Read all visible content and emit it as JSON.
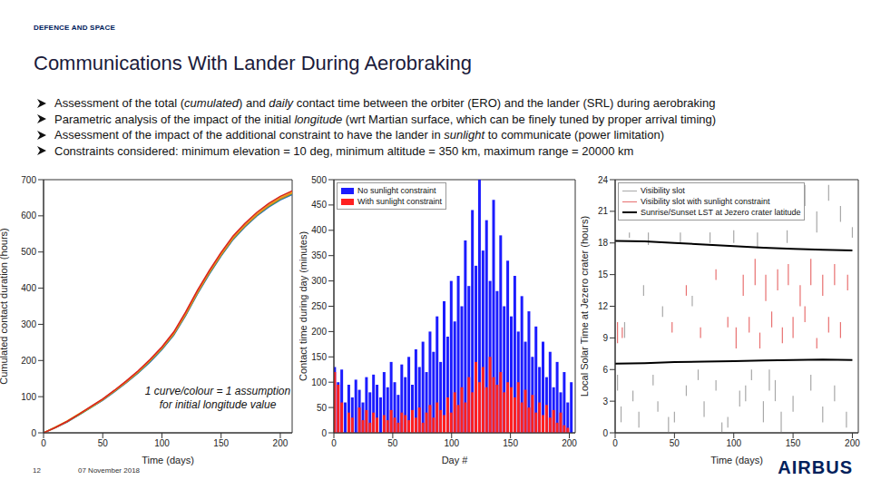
{
  "header": "DEFENCE AND SPACE",
  "title": "Communications With Lander During Aerobraking",
  "bullets": [
    [
      "Assessment of the total (",
      "cumulated",
      ") and ",
      "daily",
      " contact time between the orbiter (ERO) and the lander (SRL) during aerobraking"
    ],
    [
      "Parametric analysis of the impact of the initial ",
      "longitude",
      " (wrt Martian surface, which can be finely tuned by proper arrival timing)"
    ],
    [
      "Assessment of the impact of the additional constraint to have the lander in ",
      "sunlight",
      " to communicate (power limitation)"
    ],
    [
      "Constraints considered: minimum elevation = 10 deg, minimum altitude = 350 km, maximum range = 20000 km"
    ]
  ],
  "chart_data": [
    {
      "type": "line",
      "x_label": "Time (days)",
      "y_label": "Cumulated contact duration (hours)",
      "annotation": [
        "1 curve/colour = 1 assumption",
        "for initial longitude value"
      ],
      "x": [
        0,
        10,
        20,
        30,
        40,
        50,
        60,
        70,
        80,
        90,
        100,
        110,
        120,
        130,
        140,
        150,
        160,
        170,
        180,
        190,
        200,
        210
      ],
      "series": [
        {
          "color": "#3060d0",
          "values": [
            0,
            14,
            30,
            50,
            70,
            90,
            114,
            139,
            166,
            196,
            230,
            270,
            324,
            384,
            439,
            489,
            534,
            569,
            599,
            624,
            644,
            659
          ]
        },
        {
          "color": "#40b040",
          "values": [
            0,
            15,
            31,
            50,
            70,
            91,
            115,
            140,
            167,
            198,
            232,
            272,
            326,
            386,
            441,
            491,
            536,
            571,
            601,
            626,
            646,
            661
          ]
        },
        {
          "color": "#e8d020",
          "values": [
            0,
            16,
            33,
            53,
            72,
            93,
            117,
            143,
            170,
            201,
            236,
            276,
            331,
            391,
            446,
            496,
            541,
            576,
            606,
            631,
            651,
            666
          ]
        },
        {
          "color": "#f08020",
          "values": [
            0,
            14,
            31,
            51,
            71,
            92,
            116,
            141,
            169,
            200,
            234,
            274,
            328,
            388,
            443,
            493,
            538,
            573,
            603,
            628,
            648,
            663
          ]
        },
        {
          "color": "#d62020",
          "values": [
            0,
            15,
            32,
            52,
            73,
            94,
            118,
            144,
            172,
            203,
            238,
            279,
            334,
            394,
            449,
            499,
            544,
            579,
            609,
            634,
            654,
            669
          ]
        }
      ],
      "xlim": [
        0,
        210
      ],
      "xticks": [
        0,
        50,
        100,
        150,
        200
      ],
      "ylim": [
        0,
        700
      ],
      "yticks": [
        0,
        100,
        200,
        300,
        400,
        500,
        600,
        700
      ],
      "grid": false
    },
    {
      "type": "bar",
      "x_label": "Day #",
      "y_label": "Contact time during day (minutes)",
      "x": [
        1,
        4,
        7,
        10,
        13,
        16,
        19,
        22,
        25,
        28,
        31,
        34,
        37,
        40,
        43,
        46,
        49,
        52,
        55,
        58,
        61,
        64,
        67,
        70,
        73,
        76,
        79,
        82,
        85,
        88,
        91,
        94,
        97,
        100,
        103,
        106,
        109,
        112,
        115,
        118,
        121,
        124,
        127,
        130,
        133,
        136,
        139,
        142,
        145,
        148,
        151,
        154,
        157,
        160,
        163,
        166,
        169,
        172,
        175,
        178,
        181,
        184,
        187,
        190,
        193,
        196,
        199,
        202,
        205
      ],
      "series": [
        {
          "name": "No sunlight constraint",
          "color": "#1c1cff",
          "values": [
            130,
            100,
            125,
            60,
            95,
            70,
            105,
            85,
            60,
            110,
            80,
            115,
            95,
            70,
            120,
            90,
            140,
            100,
            75,
            135,
            110,
            150,
            95,
            165,
            130,
            180,
            120,
            200,
            160,
            230,
            140,
            260,
            190,
            300,
            220,
            310,
            250,
            380,
            290,
            440,
            330,
            500,
            360,
            420,
            300,
            460,
            280,
            390,
            250,
            340,
            230,
            310,
            200,
            270,
            180,
            240,
            150,
            210,
            130,
            180,
            110,
            160,
            90,
            140,
            80,
            120,
            60,
            100,
            0
          ]
        },
        {
          "name": "With sunlight constraint",
          "color": "#ff2020",
          "values": [
            120,
            95,
            60,
            0,
            40,
            30,
            0,
            50,
            25,
            45,
            20,
            40,
            30,
            0,
            35,
            25,
            45,
            30,
            20,
            40,
            35,
            25,
            45,
            30,
            50,
            20,
            40,
            55,
            30,
            60,
            45,
            35,
            70,
            40,
            80,
            55,
            90,
            60,
            110,
            80,
            140,
            100,
            130,
            90,
            150,
            110,
            95,
            120,
            80,
            100,
            90,
            70,
            100,
            60,
            85,
            50,
            75,
            40,
            60,
            35,
            55,
            30,
            45,
            20,
            40,
            15,
            10,
            0,
            0
          ]
        }
      ],
      "xlim": [
        0,
        205
      ],
      "xticks": [
        0,
        50,
        100,
        150,
        200
      ],
      "ylim": [
        0,
        500
      ],
      "yticks": [
        0,
        50,
        100,
        150,
        200,
        250,
        300,
        350,
        400,
        450,
        500
      ],
      "legend": "upper left",
      "grid": false
    },
    {
      "type": "range",
      "x_label": "Time (days)",
      "y_label": "Local Solar Time at Jezero crater (hours)",
      "series": [
        {
          "name": "Visibility slot",
          "color": "#a8a8a8",
          "type": "range",
          "x": [
            2,
            5,
            8,
            12,
            15,
            20,
            24,
            28,
            32,
            36,
            40,
            45,
            50,
            55,
            60,
            65,
            70,
            75,
            80,
            85,
            90,
            95,
            100,
            105,
            110,
            115,
            120,
            125,
            130,
            135,
            140,
            145,
            150,
            160,
            165,
            170,
            175,
            180,
            185,
            190,
            195,
            200
          ],
          "low": [
            4,
            1,
            9,
            18.5,
            3,
            0.5,
            13,
            17.8,
            4.5,
            2,
            11,
            0,
            1,
            18,
            3.5,
            12,
            5,
            1.5,
            18,
            4,
            0,
            0.5,
            18,
            2.5,
            3,
            5,
            17.5,
            1,
            4,
            3,
            0,
            18,
            2,
            21.5,
            4,
            19,
            1,
            22,
            3,
            20,
            0.5,
            18.5
          ],
          "high": [
            5.5,
            2.5,
            10.5,
            19,
            4,
            2,
            14,
            19,
            5.5,
            3,
            12,
            1.5,
            2,
            19,
            4.5,
            13,
            6,
            3,
            19,
            5,
            1,
            1.5,
            19.2,
            4,
            4.5,
            6,
            19,
            3,
            6,
            5,
            2,
            19.2,
            3.5,
            23.5,
            5.5,
            21,
            2.5,
            23.5,
            4.5,
            21.5,
            2,
            19.5
          ]
        },
        {
          "name": "Visibility slot with sunlight constraint",
          "color": "#e87070",
          "type": "range",
          "x": [
            2,
            6,
            48,
            60,
            72,
            85,
            95,
            102,
            108,
            113,
            118,
            122,
            127,
            132,
            137,
            141,
            146,
            150,
            156,
            160,
            165,
            170,
            175,
            180,
            185,
            190,
            196
          ],
          "low": [
            8.5,
            9,
            9.5,
            13,
            9,
            14.5,
            10,
            8,
            13,
            9.5,
            14,
            8,
            12.5,
            10,
            13.5,
            8.5,
            14,
            9,
            12,
            10.5,
            14,
            8,
            13,
            9.5,
            14,
            9,
            13.5
          ],
          "high": [
            10.5,
            10,
            10.5,
            14,
            10,
            15.5,
            11,
            10,
            15,
            11,
            16.5,
            9.5,
            15,
            11.5,
            15.5,
            10,
            16,
            11,
            14,
            12,
            16.5,
            9,
            15,
            11,
            16,
            10.5,
            15
          ]
        },
        {
          "name": "Sunrise/Sunset LST at Jezero crater latitude",
          "color": "#000000",
          "type": "line",
          "x": [
            0,
            25,
            50,
            75,
            100,
            125,
            150,
            175,
            200
          ],
          "sunrise": [
            6.55,
            6.6,
            6.7,
            6.75,
            6.8,
            6.85,
            6.9,
            6.95,
            6.9
          ],
          "sunset": [
            18.2,
            18.15,
            18.0,
            17.85,
            17.7,
            17.55,
            17.45,
            17.35,
            17.3
          ]
        }
      ],
      "xlim": [
        0,
        205
      ],
      "xticks": [
        0,
        50,
        100,
        150,
        200
      ],
      "ylim": [
        0,
        24
      ],
      "yticks": [
        0,
        3,
        6,
        9,
        12,
        15,
        18,
        21,
        24
      ],
      "legend": "upper left",
      "grid": false
    }
  ],
  "footer": {
    "page": 12,
    "date": "07 November 2018",
    "logo": "AIRBUS"
  }
}
